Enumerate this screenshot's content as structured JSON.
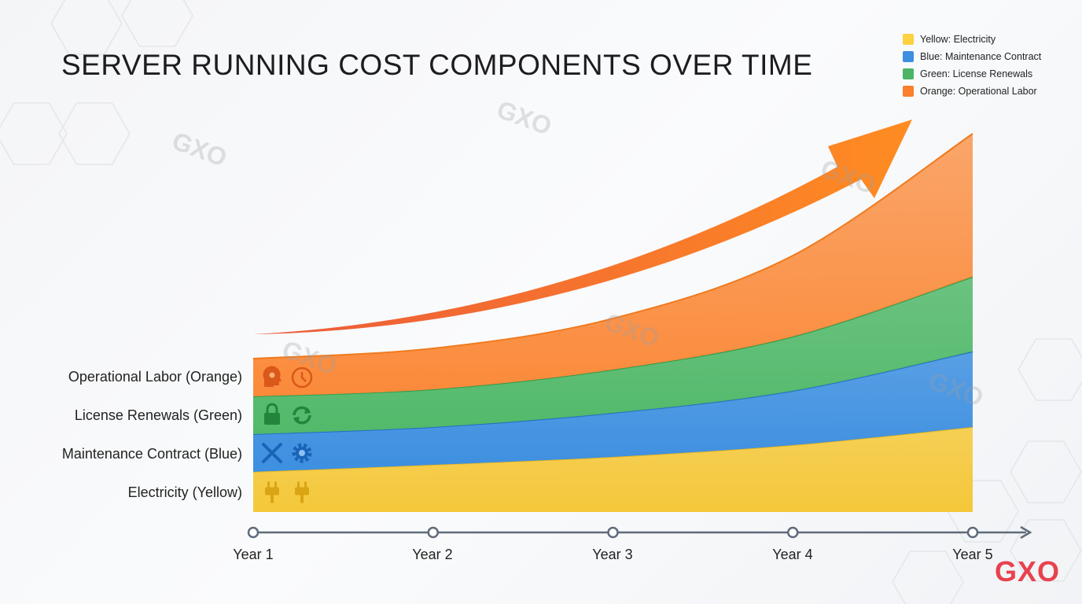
{
  "chart_data": {
    "type": "area",
    "stacked": true,
    "title": "SERVER RUNNING COST COMPONENTS OVER TIME",
    "xlabel": "",
    "ylabel": "",
    "categories": [
      "Year 1",
      "Year 2",
      "Year 3",
      "Year 4",
      "Year 5"
    ],
    "ylim": [
      0,
      50
    ],
    "grid": false,
    "legend_position": "top-right",
    "series": [
      {
        "name": "Yellow: Electricity",
        "row_label": "Electricity (Yellow)",
        "color": "#f5c83a",
        "values": [
          5.1,
          6.0,
          7.0,
          8.5,
          10.8
        ],
        "icons": [
          "plug-icon",
          "plug-icon"
        ]
      },
      {
        "name": "Blue: Maintenance Contract",
        "row_label": "Maintenance Contract (Blue)",
        "color": "#3d8fe0",
        "values": [
          4.8,
          4.8,
          5.6,
          6.9,
          9.6
        ],
        "icons": [
          "wrench-screwdriver-icon",
          "gear-icon"
        ]
      },
      {
        "name": "Green: License Renewals",
        "row_label": "License Renewals (Green)",
        "color": "#52b96a",
        "values": [
          4.8,
          4.8,
          5.5,
          6.9,
          9.5
        ],
        "icons": [
          "lock-icon",
          "refresh-icon"
        ]
      },
      {
        "name": "Orange: Operational Labor",
        "row_label": "Operational Labor (Orange)",
        "color": "#fb8a3a",
        "values": [
          4.8,
          5.2,
          6.5,
          10.3,
          18.2
        ],
        "icons": [
          "person-head-icon",
          "clock-icon"
        ]
      }
    ],
    "annotation": "trend-arrow-up"
  },
  "watermark": "GXO",
  "logo": "GXO"
}
